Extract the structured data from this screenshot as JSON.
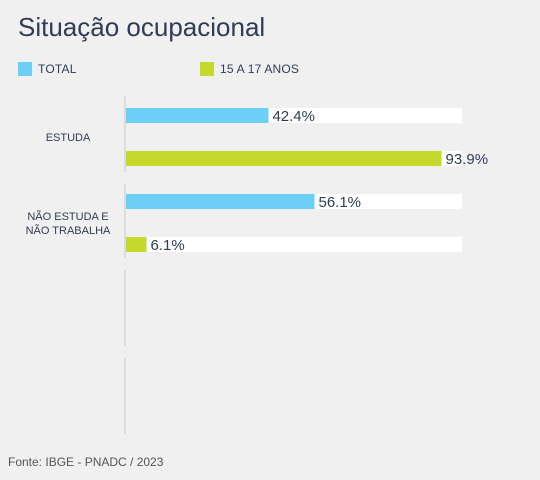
{
  "title": "Situação ocupacional",
  "legend": [
    {
      "label": "TOTAL",
      "color": "#6dcff6"
    },
    {
      "label": "15 A 17 ANOS",
      "color": "#c5d92d"
    }
  ],
  "source": "Fonte: IBGE - PNADC / 2023",
  "chart_data": {
    "type": "bar",
    "orientation": "horizontal",
    "categories": [
      [
        "ESTUDA"
      ],
      [
        "NÃO ESTUDA E",
        "NÃO TRABALHA"
      ]
    ],
    "series": [
      {
        "name": "TOTAL",
        "color": "#6dcff6",
        "values": [
          42.4,
          56.1
        ]
      },
      {
        "name": "15 A 17 ANOS",
        "color": "#c5d92d",
        "values": [
          93.9,
          6.1
        ]
      }
    ],
    "value_labels": [
      [
        "42.4%",
        "56.1%"
      ],
      [
        "93.9%",
        "6.1%"
      ]
    ],
    "xlim": [
      0,
      100
    ],
    "track_color": "#ffffff",
    "grid": false,
    "legend_position": "top-left"
  }
}
